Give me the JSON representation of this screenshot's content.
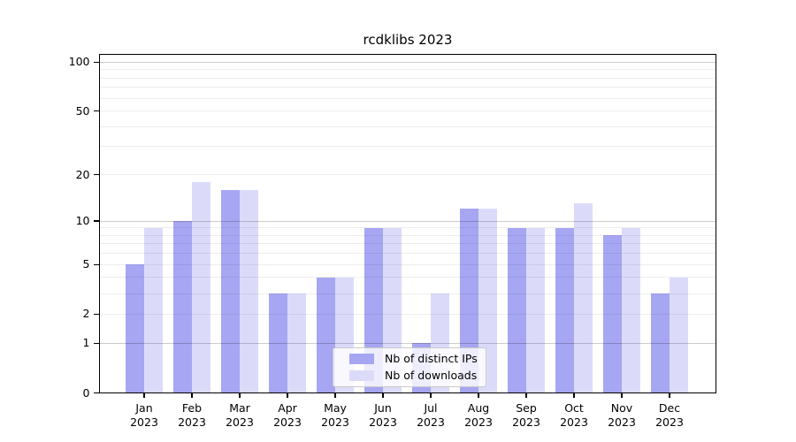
{
  "title": "rcdklibs 2023",
  "colors": {
    "distinct_ips_bar": "#a6a6f3",
    "downloads_bar": "#dbdbf9",
    "grid_major": "#cccccc",
    "grid_minor": "#ededed",
    "axis": "#000000"
  },
  "chart_data": {
    "type": "bar",
    "title": "rcdklibs 2023",
    "categories": [
      "Jan",
      "Feb",
      "Mar",
      "Apr",
      "May",
      "Jun",
      "Jul",
      "Aug",
      "Sep",
      "Oct",
      "Nov",
      "Dec"
    ],
    "year_label": "2023",
    "series": [
      {
        "name": "Nb of distinct IPs",
        "color": "#a6a6f3",
        "values": [
          5,
          10,
          16,
          3,
          4,
          9,
          1,
          12,
          9,
          9,
          8,
          3
        ]
      },
      {
        "name": "Nb of downloads",
        "color": "#dbdbf9",
        "values": [
          9,
          18,
          16,
          3,
          4,
          9,
          3,
          12,
          9,
          13,
          9,
          4
        ]
      }
    ],
    "xlabel": "",
    "ylabel": "",
    "yscale": "log1p",
    "ylim": [
      0,
      112
    ],
    "yticks": [
      0,
      1,
      2,
      5,
      10,
      20,
      50,
      100
    ],
    "major_gridlines": [
      1,
      10,
      100
    ],
    "minor_gridlines": [
      2,
      3,
      4,
      5,
      6,
      7,
      8,
      9,
      20,
      30,
      40,
      50,
      60,
      70,
      80,
      90
    ],
    "grid": true,
    "legend_position": "lower center"
  }
}
